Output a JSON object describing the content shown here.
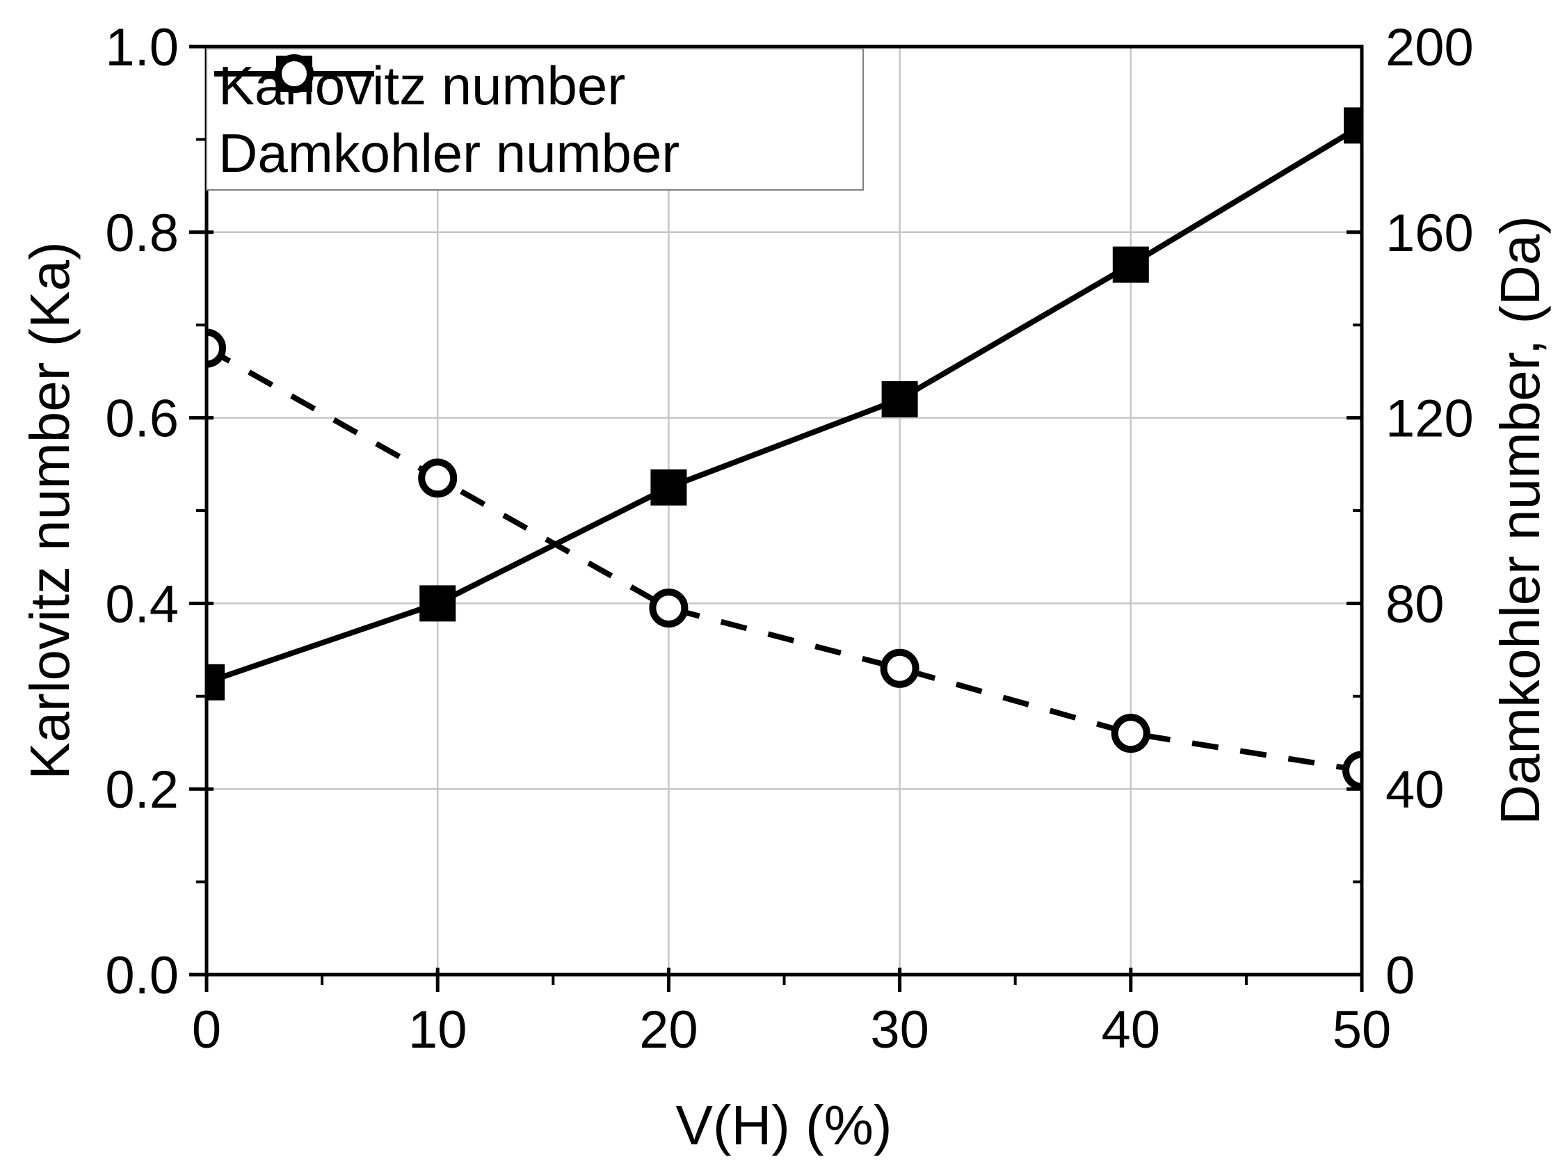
{
  "chart_data": {
    "type": "line",
    "x": [
      0,
      10,
      20,
      30,
      40,
      50
    ],
    "xlabel": "V(H) (%)",
    "xlim": [
      0,
      50
    ],
    "x_major_ticks": [
      0,
      10,
      20,
      30,
      40,
      50
    ],
    "x_tick_labels": [
      "0",
      "10",
      "20",
      "30",
      "40",
      "50"
    ],
    "x_minor_ticks": [
      5,
      15,
      25,
      35,
      45
    ],
    "grid": true,
    "legend_position": "top-left",
    "left_axis": {
      "label": "Karlovitz number (Ka)",
      "lim": [
        0.0,
        1.0
      ],
      "major_ticks": [
        0.0,
        0.2,
        0.4,
        0.6,
        0.8,
        1.0
      ],
      "tick_labels": [
        "0.0",
        "0.2",
        "0.4",
        "0.6",
        "0.8",
        "1.0"
      ],
      "minor_ticks": [
        0.1,
        0.3,
        0.5,
        0.7,
        0.9
      ]
    },
    "right_axis": {
      "label": "Damkohler number, (Da)",
      "lim": [
        0,
        200
      ],
      "major_ticks": [
        0,
        40,
        80,
        120,
        160,
        200
      ],
      "tick_labels": [
        "0",
        "40",
        "80",
        "120",
        "160",
        "200"
      ],
      "minor_ticks": [
        20,
        60,
        100,
        140,
        180
      ]
    },
    "series": [
      {
        "name": "Karlovitz number",
        "axis": "left",
        "line": "solid",
        "marker": "filled-square",
        "color": "#000000",
        "values": [
          0.315,
          0.4,
          0.525,
          0.62,
          0.765,
          0.915
        ]
      },
      {
        "name": "Damkohler number",
        "axis": "right",
        "line": "dashed",
        "marker": "open-circle",
        "color": "#000000",
        "values": [
          135,
          107,
          79,
          66,
          52,
          44
        ]
      }
    ]
  },
  "legend": {
    "items": [
      {
        "label": "Karlovitz number"
      },
      {
        "label": "Damkohler number"
      }
    ]
  },
  "colors": {
    "series": "#000000",
    "grid": "#c6c6c6",
    "frame": "#000000",
    "legend_border": "#7f7f7f",
    "background": "#ffffff"
  }
}
